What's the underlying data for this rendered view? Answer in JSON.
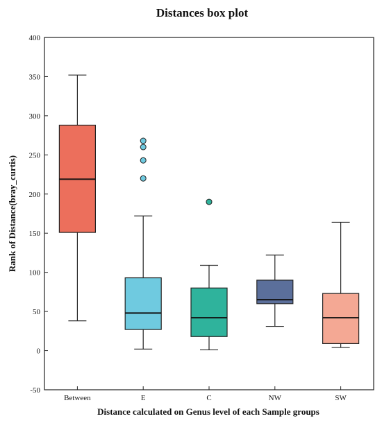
{
  "chart_data": {
    "type": "box",
    "title": "Distances box plot",
    "xlabel": "Distance calculated on Genus level of each Sample groups",
    "ylabel": "Rank of Distance(bray_curtis)",
    "ylim": [
      -50,
      400
    ],
    "yticks": [
      "-50",
      "0",
      "50",
      "100",
      "150",
      "200",
      "250",
      "300",
      "350",
      "400"
    ],
    "categories": [
      "Between",
      "E",
      "C",
      "NW",
      "SW"
    ],
    "colors": [
      "#ec6f5c",
      "#6fcae0",
      "#2fb39c",
      "#5b6f9b",
      "#f4a894"
    ],
    "boxes": [
      {
        "min": 38,
        "q1": 151,
        "median": 219,
        "q3": 288,
        "max": 352,
        "outliers": []
      },
      {
        "min": 2,
        "q1": 27,
        "median": 48,
        "q3": 93,
        "max": 172,
        "outliers": [
          220,
          243,
          260,
          268
        ]
      },
      {
        "min": 1,
        "q1": 18,
        "median": 42,
        "q3": 80,
        "max": 109,
        "outliers": [
          190
        ]
      },
      {
        "min": 31,
        "q1": 60,
        "median": 65,
        "q3": 90,
        "max": 122,
        "outliers": []
      },
      {
        "min": 4,
        "q1": 9,
        "median": 42,
        "q3": 73,
        "max": 164,
        "outliers": []
      }
    ],
    "grid": false
  }
}
